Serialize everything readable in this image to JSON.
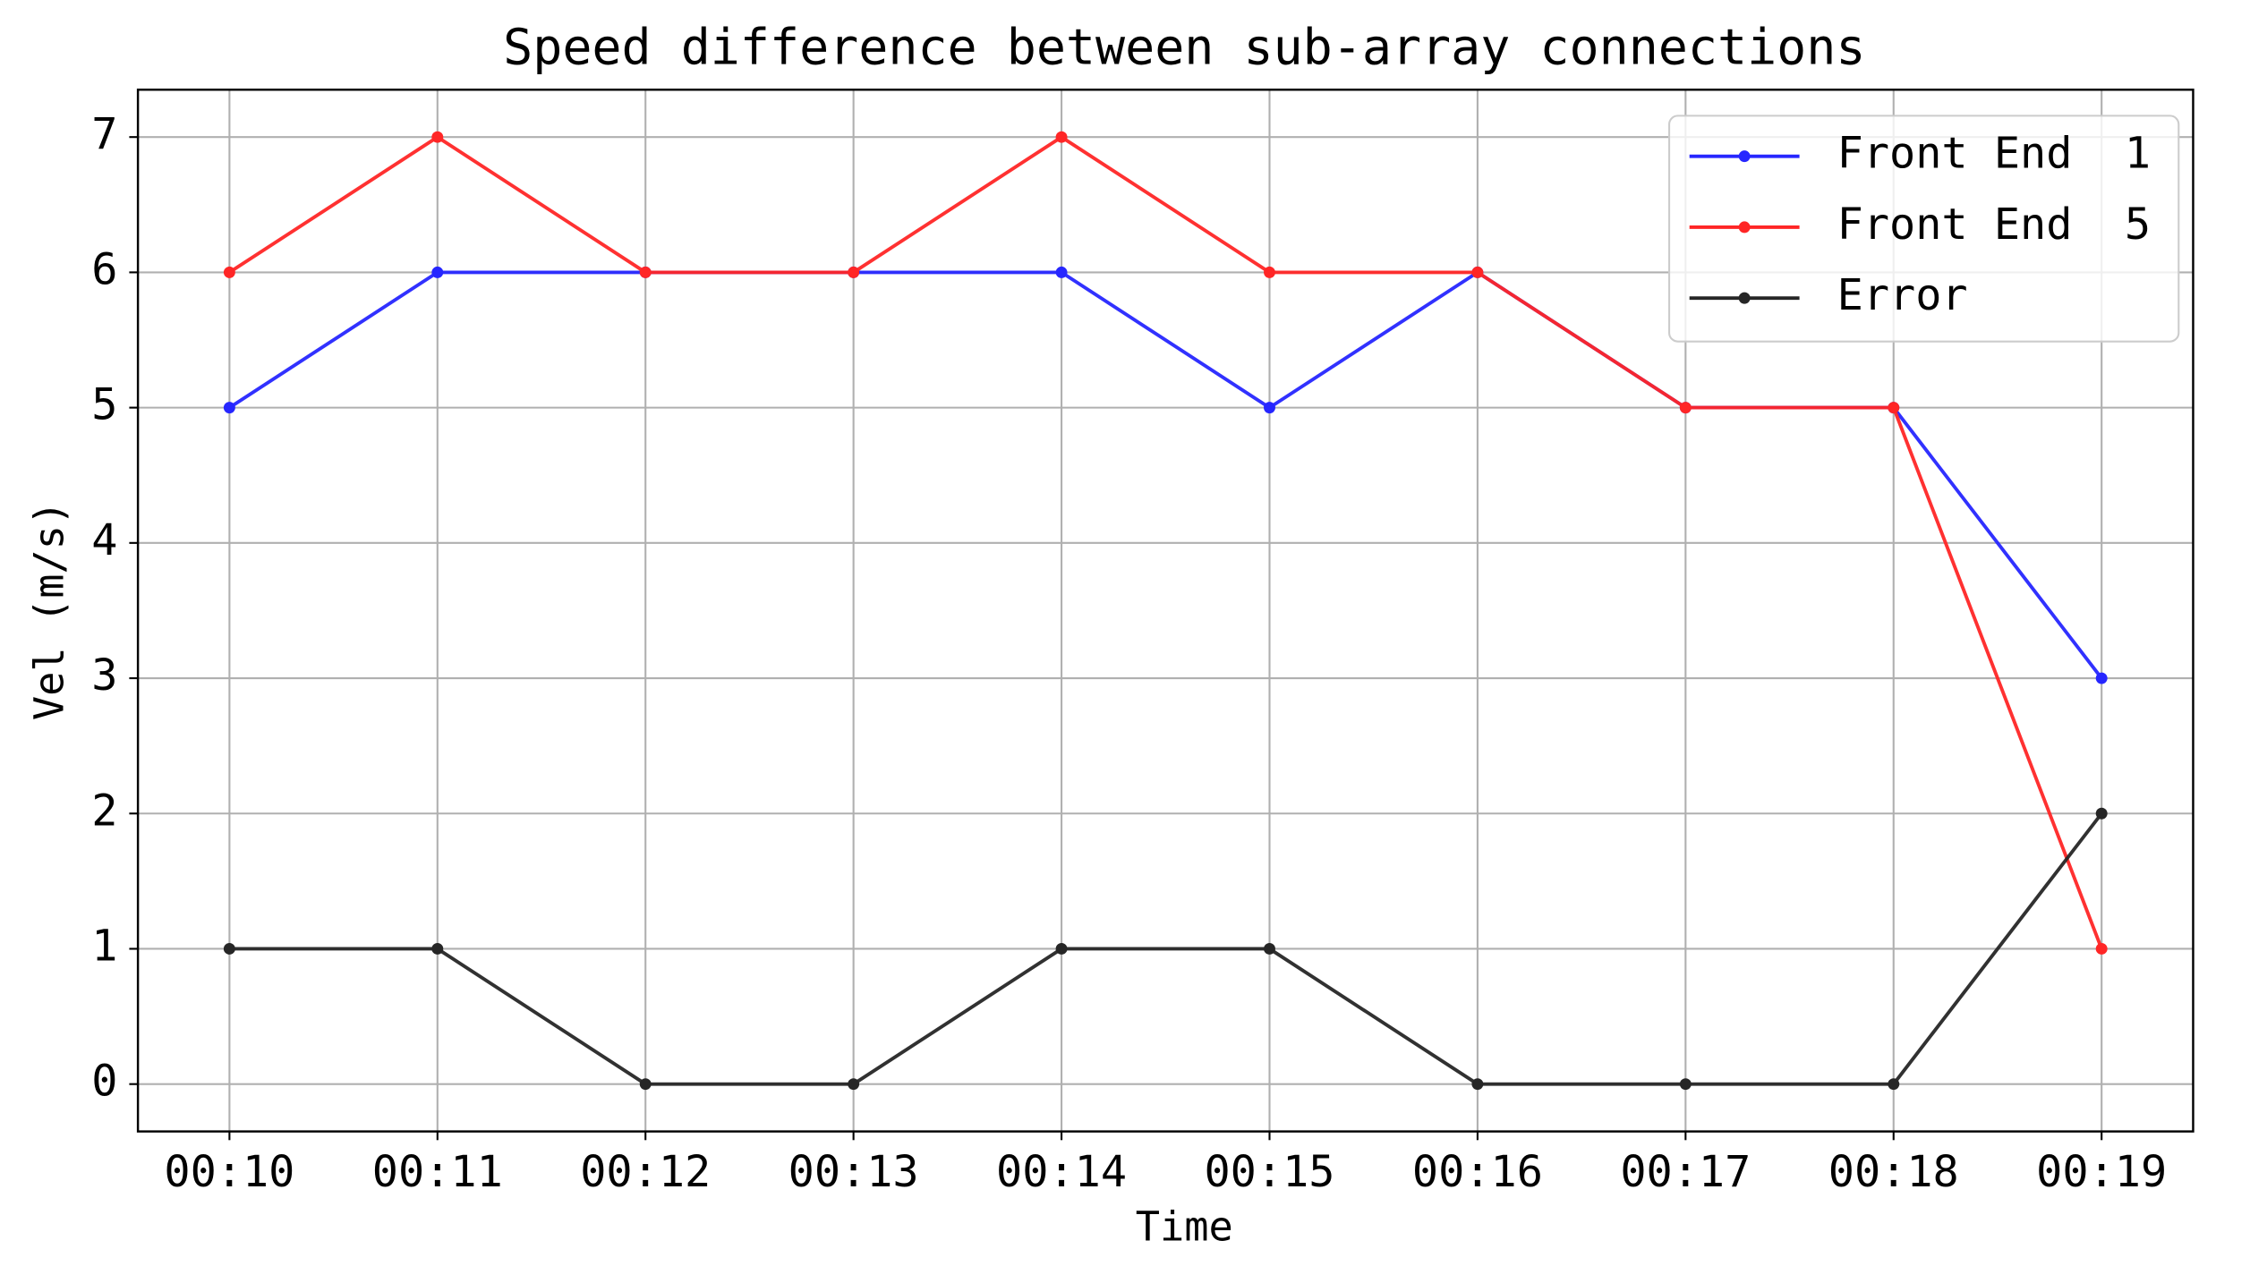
{
  "chart_data": {
    "type": "line",
    "title": "Speed difference between sub-array connections",
    "x_label": "Time",
    "y_label": "Vel (m/s)",
    "categories": [
      "00:10",
      "00:11",
      "00:12",
      "00:13",
      "00:14",
      "00:15",
      "00:16",
      "00:17",
      "00:18",
      "00:19"
    ],
    "series": [
      {
        "name": "Front End  1",
        "color": "#2626ff",
        "values": [
          5,
          6,
          6,
          6,
          6,
          5,
          6,
          5,
          5,
          3
        ]
      },
      {
        "name": "Front End  5",
        "color": "#ff2626",
        "values": [
          6,
          7,
          6,
          6,
          7,
          6,
          6,
          5,
          5,
          1
        ]
      },
      {
        "name": "Error",
        "color": "#262626",
        "values": [
          1,
          1,
          0,
          0,
          1,
          1,
          0,
          0,
          0,
          2
        ]
      }
    ],
    "ylim": [
      -0.35,
      7.35
    ],
    "yticks": [
      0,
      1,
      2,
      3,
      4,
      5,
      6,
      7
    ],
    "grid": true,
    "legend": "upper right"
  }
}
